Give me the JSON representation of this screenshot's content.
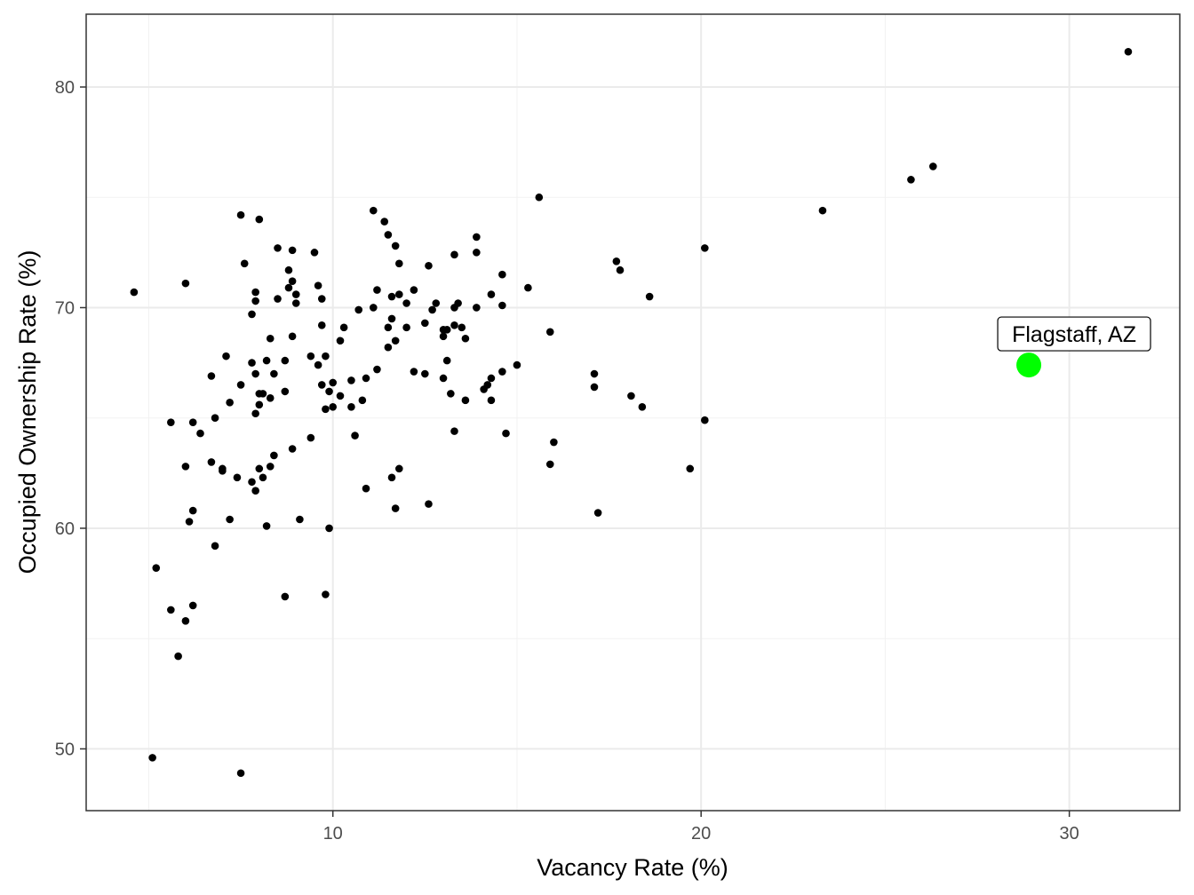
{
  "chart_data": {
    "type": "scatter",
    "xlabel": "Vacancy Rate (%)",
    "ylabel": "Occupied Ownership Rate (%)",
    "xlim": [
      3.3,
      33.0
    ],
    "ylim": [
      47.2,
      83.3
    ],
    "x_ticks": [
      10,
      20,
      30
    ],
    "y_ticks": [
      50,
      60,
      70,
      80
    ],
    "x_minor": [
      5,
      15,
      25
    ],
    "y_minor": [
      55,
      65,
      75
    ],
    "grid": true,
    "point_color": "#000000",
    "highlight_color": "#00ff00",
    "highlight": {
      "label": "Flagstaff, AZ",
      "x": 28.9,
      "y": 67.4
    },
    "points": [
      [
        31.6,
        81.6
      ],
      [
        26.3,
        76.4
      ],
      [
        25.7,
        75.8
      ],
      [
        23.3,
        74.4
      ],
      [
        20.1,
        72.7
      ],
      [
        18.6,
        70.5
      ],
      [
        20.1,
        64.9
      ],
      [
        19.7,
        62.7
      ],
      [
        18.1,
        66.0
      ],
      [
        18.4,
        65.5
      ],
      [
        17.7,
        72.1
      ],
      [
        17.8,
        71.7
      ],
      [
        17.1,
        67.0
      ],
      [
        17.1,
        66.4
      ],
      [
        17.2,
        60.7
      ],
      [
        15.6,
        75.0
      ],
      [
        15.3,
        70.9
      ],
      [
        15.9,
        68.9
      ],
      [
        16.0,
        63.9
      ],
      [
        15.9,
        62.9
      ],
      [
        15.0,
        67.4
      ],
      [
        14.7,
        64.3
      ],
      [
        14.6,
        71.5
      ],
      [
        14.6,
        70.1
      ],
      [
        14.6,
        67.1
      ],
      [
        14.3,
        70.6
      ],
      [
        14.3,
        66.8
      ],
      [
        14.2,
        66.5
      ],
      [
        14.1,
        66.3
      ],
      [
        14.3,
        65.8
      ],
      [
        13.9,
        73.2
      ],
      [
        13.9,
        72.5
      ],
      [
        13.9,
        70.0
      ],
      [
        13.5,
        69.1
      ],
      [
        13.6,
        68.6
      ],
      [
        13.6,
        65.8
      ],
      [
        13.3,
        72.4
      ],
      [
        13.4,
        70.2
      ],
      [
        13.3,
        70.0
      ],
      [
        13.3,
        69.2
      ],
      [
        13.2,
        66.1
      ],
      [
        13.3,
        64.4
      ],
      [
        13.1,
        69.0
      ],
      [
        13.0,
        69.0
      ],
      [
        13.0,
        68.7
      ],
      [
        13.0,
        66.8
      ],
      [
        13.1,
        67.6
      ],
      [
        12.8,
        70.2
      ],
      [
        12.7,
        69.9
      ],
      [
        12.6,
        71.9
      ],
      [
        12.5,
        69.3
      ],
      [
        12.5,
        67.0
      ],
      [
        12.6,
        61.1
      ],
      [
        12.2,
        70.8
      ],
      [
        12.2,
        67.1
      ],
      [
        12.0,
        70.2
      ],
      [
        12.0,
        69.1
      ],
      [
        11.8,
        72.0
      ],
      [
        11.7,
        72.8
      ],
      [
        11.8,
        70.6
      ],
      [
        11.7,
        68.5
      ],
      [
        11.8,
        62.7
      ],
      [
        11.7,
        60.9
      ],
      [
        11.6,
        69.5
      ],
      [
        11.5,
        73.3
      ],
      [
        11.4,
        73.9
      ],
      [
        11.6,
        70.5
      ],
      [
        11.5,
        69.1
      ],
      [
        11.5,
        68.2
      ],
      [
        11.6,
        62.3
      ],
      [
        11.1,
        74.4
      ],
      [
        11.2,
        70.8
      ],
      [
        11.2,
        67.2
      ],
      [
        11.1,
        70.0
      ],
      [
        10.9,
        66.8
      ],
      [
        10.9,
        61.8
      ],
      [
        10.8,
        65.8
      ],
      [
        10.7,
        69.9
      ],
      [
        10.6,
        64.2
      ],
      [
        10.5,
        66.7
      ],
      [
        10.5,
        65.5
      ],
      [
        10.3,
        69.1
      ],
      [
        10.2,
        68.5
      ],
      [
        10.2,
        66.0
      ],
      [
        10.0,
        66.6
      ],
      [
        10.0,
        65.5
      ],
      [
        9.9,
        66.2
      ],
      [
        9.9,
        60.0
      ],
      [
        9.8,
        57.0
      ],
      [
        9.8,
        67.8
      ],
      [
        9.8,
        65.4
      ],
      [
        9.7,
        69.2
      ],
      [
        9.7,
        66.5
      ],
      [
        9.6,
        71.0
      ],
      [
        9.7,
        70.4
      ],
      [
        9.6,
        67.4
      ],
      [
        9.5,
        72.5
      ],
      [
        9.4,
        67.8
      ],
      [
        9.4,
        64.1
      ],
      [
        9.1,
        60.4
      ],
      [
        9.0,
        70.6
      ],
      [
        9.0,
        70.2
      ],
      [
        8.9,
        72.6
      ],
      [
        8.9,
        71.2
      ],
      [
        8.9,
        68.7
      ],
      [
        8.9,
        63.6
      ],
      [
        8.8,
        71.7
      ],
      [
        8.8,
        70.9
      ],
      [
        8.7,
        67.6
      ],
      [
        8.7,
        66.2
      ],
      [
        8.7,
        56.9
      ],
      [
        8.5,
        72.7
      ],
      [
        8.5,
        70.4
      ],
      [
        8.4,
        67.0
      ],
      [
        8.4,
        63.3
      ],
      [
        8.3,
        68.6
      ],
      [
        8.3,
        65.9
      ],
      [
        8.3,
        62.8
      ],
      [
        8.2,
        67.6
      ],
      [
        8.2,
        60.1
      ],
      [
        8.1,
        66.1
      ],
      [
        8.0,
        65.6
      ],
      [
        8.1,
        62.3
      ],
      [
        8.0,
        74.0
      ],
      [
        8.0,
        66.1
      ],
      [
        8.0,
        62.7
      ],
      [
        7.9,
        70.7
      ],
      [
        7.9,
        70.3
      ],
      [
        7.9,
        67.0
      ],
      [
        7.9,
        65.2
      ],
      [
        7.9,
        61.7
      ],
      [
        7.8,
        69.7
      ],
      [
        7.8,
        67.5
      ],
      [
        7.8,
        62.1
      ],
      [
        7.6,
        72.0
      ],
      [
        7.5,
        74.2
      ],
      [
        7.5,
        66.5
      ],
      [
        7.5,
        48.9
      ],
      [
        7.4,
        62.3
      ],
      [
        7.2,
        65.7
      ],
      [
        7.2,
        60.4
      ],
      [
        7.1,
        67.8
      ],
      [
        7.0,
        62.7
      ],
      [
        7.0,
        62.6
      ],
      [
        6.8,
        65.0
      ],
      [
        6.8,
        59.2
      ],
      [
        6.7,
        66.9
      ],
      [
        6.7,
        63.0
      ],
      [
        6.4,
        64.3
      ],
      [
        6.2,
        64.8
      ],
      [
        6.2,
        60.8
      ],
      [
        6.2,
        56.5
      ],
      [
        6.1,
        60.3
      ],
      [
        6.0,
        71.1
      ],
      [
        6.0,
        62.8
      ],
      [
        6.0,
        55.8
      ],
      [
        5.8,
        54.2
      ],
      [
        5.6,
        64.8
      ],
      [
        5.6,
        56.3
      ],
      [
        5.2,
        58.2
      ],
      [
        5.1,
        49.6
      ],
      [
        4.6,
        70.7
      ]
    ]
  }
}
